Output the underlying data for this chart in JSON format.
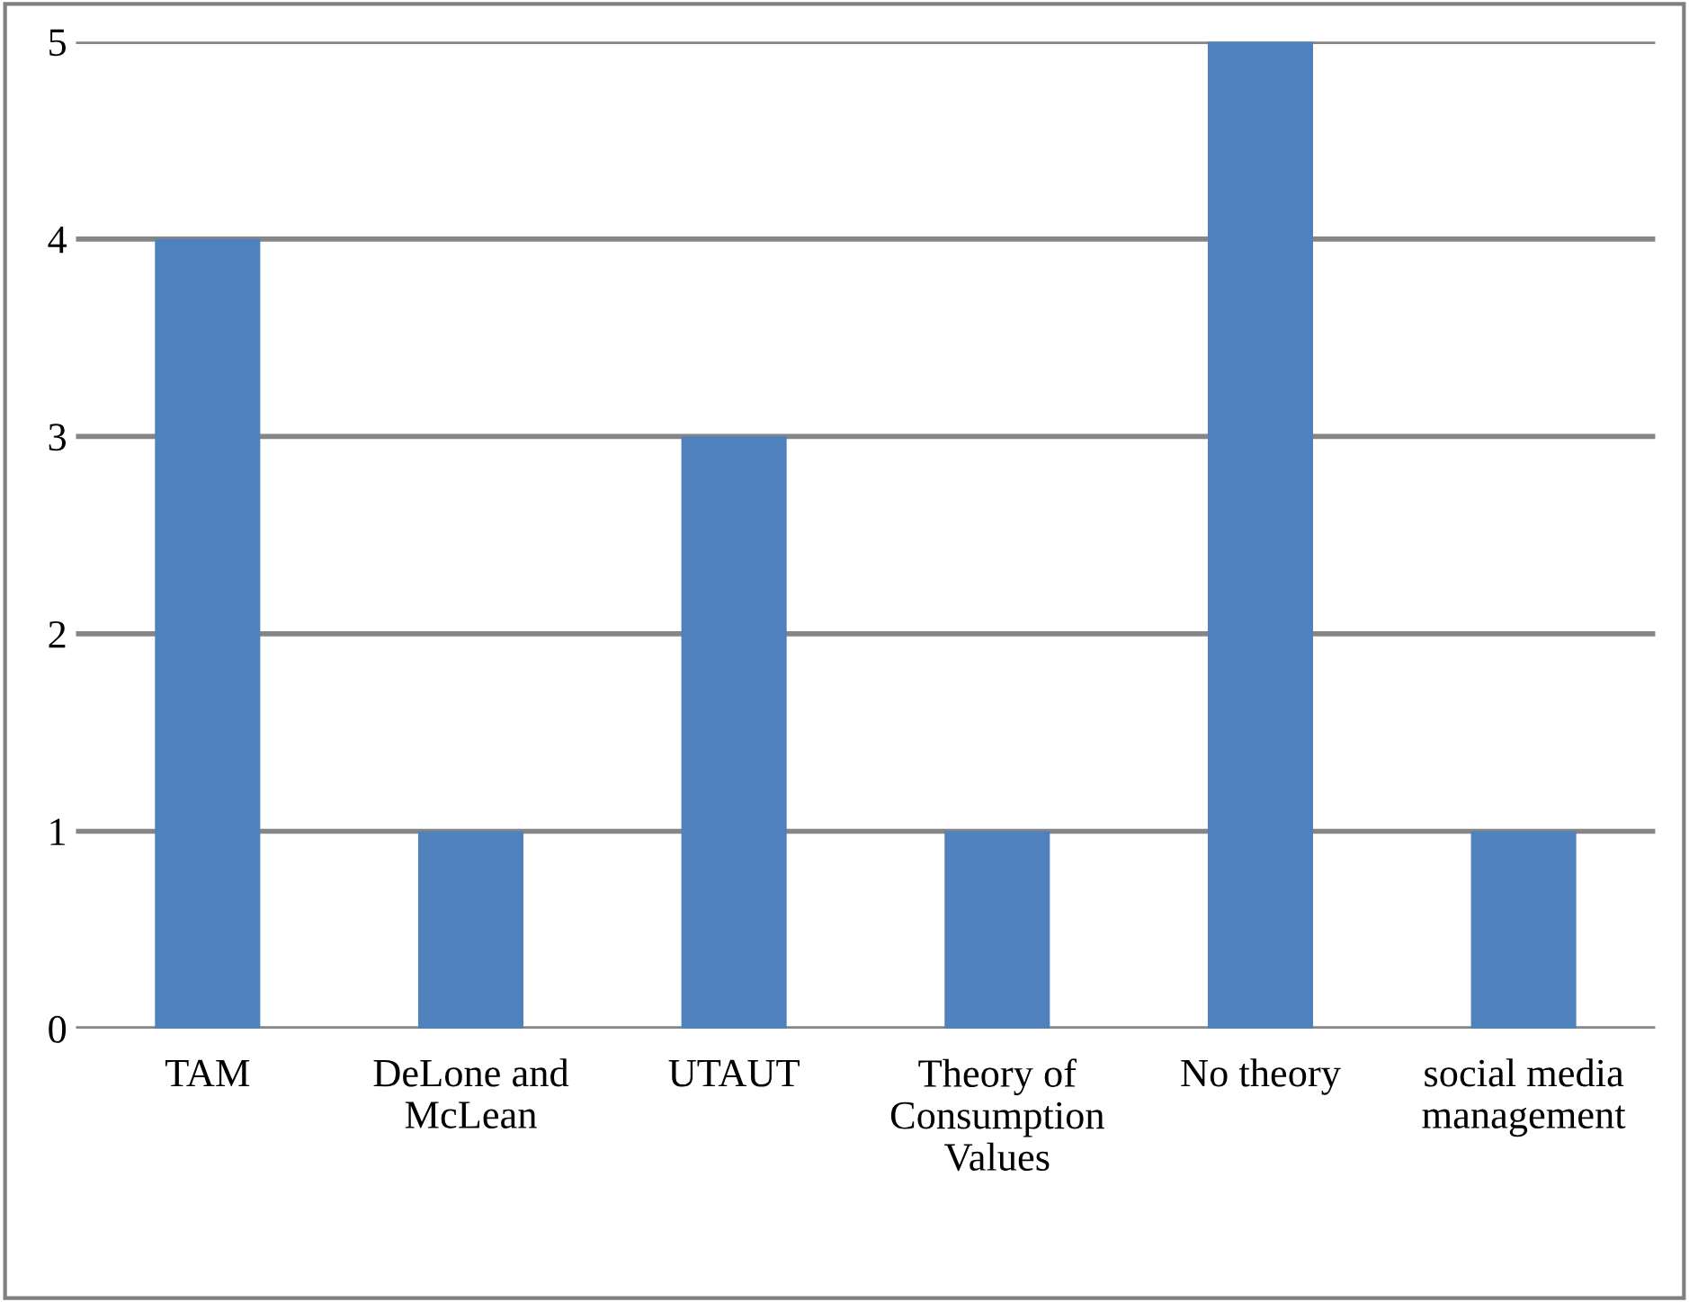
{
  "chart_data": {
    "type": "bar",
    "categories": [
      "TAM",
      "DeLone and\nMcLean",
      "UTAUT",
      "Theory of\nConsumption\nValues",
      "No theory",
      "social media\nmanagement"
    ],
    "values": [
      4,
      1,
      3,
      1,
      5,
      1
    ],
    "color": "#4f81bd",
    "ylim": [
      0,
      5
    ],
    "yticks": [
      0,
      1,
      2,
      3,
      4,
      5
    ],
    "grid": "y",
    "legend": false
  }
}
